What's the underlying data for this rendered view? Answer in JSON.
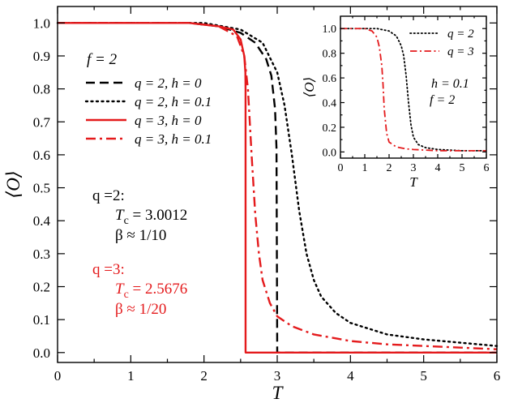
{
  "chart_data": [
    {
      "type": "line",
      "xlabel": "T",
      "ylabel": "⟨O⟩",
      "xlim": [
        0,
        6
      ],
      "ylim": [
        -0.03,
        1.05
      ],
      "xticks": [
        0,
        1,
        2,
        3,
        4,
        5,
        6
      ],
      "yticks": [
        0.0,
        0.1,
        0.2,
        0.3,
        0.4,
        0.5,
        0.6,
        0.7,
        0.8,
        0.9,
        1.0
      ],
      "legend_placement": "upper-middle",
      "legend_header": "f = 2",
      "series": [
        {
          "name": "q = 2,  h = 0",
          "color": "#000000",
          "style": "dashed",
          "x": [
            0,
            1.8,
            2.2,
            2.5,
            2.7,
            2.85,
            2.92,
            2.97,
            2.99,
            3.0,
            3.001,
            3.5,
            6
          ],
          "y": [
            1.0,
            1.0,
            0.99,
            0.97,
            0.94,
            0.89,
            0.84,
            0.74,
            0.62,
            0.0,
            0.0,
            0.0,
            0.0
          ]
        },
        {
          "name": "q = 2,  h = 0.1",
          "color": "#000000",
          "style": "dotted",
          "x": [
            0,
            2.0,
            2.5,
            2.8,
            3.0,
            3.1,
            3.2,
            3.3,
            3.4,
            3.5,
            3.6,
            3.8,
            4.0,
            4.5,
            5.0,
            5.5,
            6.0
          ],
          "y": [
            1.0,
            1.0,
            0.98,
            0.94,
            0.85,
            0.75,
            0.6,
            0.43,
            0.3,
            0.22,
            0.17,
            0.12,
            0.09,
            0.055,
            0.04,
            0.03,
            0.02
          ]
        },
        {
          "name": "q = 3,  h = 0",
          "color": "#e41a1c",
          "style": "solid",
          "x": [
            0,
            1.8,
            2.2,
            2.4,
            2.5,
            2.55,
            2.565,
            2.5676,
            2.5677,
            6.0
          ],
          "y": [
            1.0,
            1.0,
            0.99,
            0.98,
            0.95,
            0.9,
            0.85,
            0.8,
            0.0,
            0.0
          ]
        },
        {
          "name": "q = 3,  h = 0.1",
          "color": "#e41a1c",
          "style": "dashdot",
          "x": [
            0,
            1.8,
            2.2,
            2.45,
            2.55,
            2.6,
            2.65,
            2.7,
            2.75,
            2.8,
            2.9,
            3.0,
            3.2,
            3.5,
            4.0,
            4.5,
            5.0,
            6.0
          ],
          "y": [
            1.0,
            1.0,
            0.99,
            0.96,
            0.9,
            0.8,
            0.6,
            0.42,
            0.3,
            0.22,
            0.15,
            0.11,
            0.08,
            0.055,
            0.035,
            0.025,
            0.02,
            0.01
          ]
        }
      ],
      "annotations": [
        {
          "id": "q2-label",
          "text": "q =2:",
          "color": "#000000"
        },
        {
          "id": "q2-tc",
          "text": "T",
          "sub": "c",
          "value": " = 3.0012",
          "color": "#000000"
        },
        {
          "id": "q2-beta",
          "text": "β ≈ 1/10",
          "color": "#000000"
        },
        {
          "id": "q3-label",
          "text": "q =3:",
          "color": "#e41a1c"
        },
        {
          "id": "q3-tc",
          "text": "T",
          "sub": "c",
          "value": " = 2.5676",
          "color": "#e41a1c"
        },
        {
          "id": "q3-beta",
          "text": "β ≈ 1/20",
          "color": "#e41a1c"
        }
      ]
    },
    {
      "type": "line",
      "role": "inset",
      "xlabel": "T",
      "ylabel": "⟨O⟩",
      "xlim": [
        0,
        6
      ],
      "ylim": [
        -0.05,
        1.1
      ],
      "xticks": [
        0,
        1,
        2,
        3,
        4,
        5,
        6
      ],
      "yticks": [
        0.0,
        0.2,
        0.4,
        0.6,
        0.8,
        1.0
      ],
      "legend_placement": "top-right",
      "notes": [
        "h = 0.1",
        "f = 2"
      ],
      "series": [
        {
          "name": "q = 2",
          "color": "#000000",
          "style": "dotted",
          "x": [
            0,
            1.5,
            2.0,
            2.3,
            2.5,
            2.6,
            2.7,
            2.8,
            2.9,
            3.0,
            3.2,
            3.5,
            4.0,
            5.0,
            6.0
          ],
          "y": [
            1.0,
            1.0,
            0.98,
            0.94,
            0.86,
            0.78,
            0.62,
            0.4,
            0.22,
            0.12,
            0.06,
            0.035,
            0.02,
            0.01,
            0.01
          ]
        },
        {
          "name": "q = 3",
          "color": "#e41a1c",
          "style": "dashdot",
          "x": [
            0,
            1.0,
            1.3,
            1.5,
            1.6,
            1.7,
            1.75,
            1.8,
            1.9,
            2.0,
            2.3,
            2.7,
            3.0,
            4.0,
            6.0
          ],
          "y": [
            1.0,
            1.0,
            0.98,
            0.93,
            0.85,
            0.7,
            0.55,
            0.35,
            0.15,
            0.08,
            0.04,
            0.025,
            0.02,
            0.01,
            0.01
          ]
        }
      ]
    }
  ]
}
